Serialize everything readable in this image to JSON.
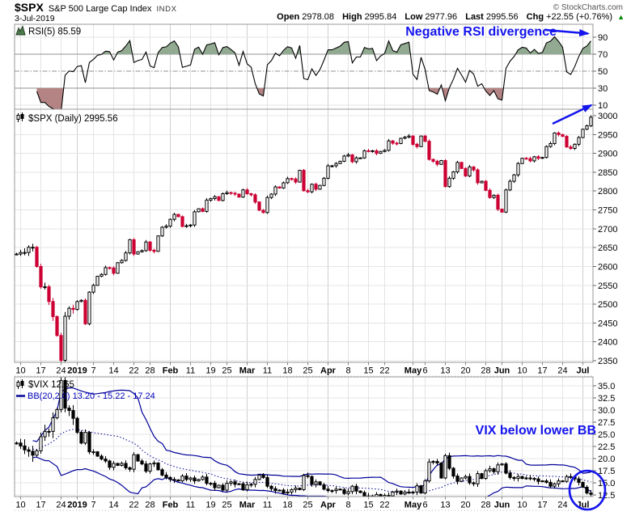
{
  "header": {
    "symbol": "$SPX",
    "name": "S&P 500 Large Cap Index",
    "exchange": "INDX",
    "date": "3-Jul-2019",
    "credit": "© StockCharts.com",
    "quote": {
      "open_label": "Open",
      "open": "2978.08",
      "high_label": "High",
      "high": "2995.84",
      "low_label": "Low",
      "low": "2977.96",
      "last_label": "Last",
      "last": "2995.56",
      "chg_label": "Chg",
      "chg": "+22.55 (+0.76%)",
      "arrow_up": "▲"
    }
  },
  "panels": {
    "rsi": {
      "label": "RSI(5) 85.59",
      "ticks": [
        90,
        70,
        50,
        30,
        10
      ],
      "overbought": 70,
      "midline": 50,
      "oversold": 30
    },
    "price": {
      "label": "$SPX (Daily) 2995.56",
      "ticks": [
        3000,
        2950,
        2900,
        2850,
        2800,
        2750,
        2700,
        2650,
        2600,
        2550,
        2500,
        2450,
        2400,
        2350
      ]
    },
    "vix": {
      "label": "$VIX 12.65",
      "bb_label": "BB(20,2.0) 13.20 - 15.22 - 17.24",
      "ticks": [
        "35.0",
        "32.5",
        "30.0",
        "27.5",
        "25.0",
        "22.5",
        "20.0",
        "17.5",
        "15.0",
        "12.5"
      ]
    }
  },
  "annotations": {
    "rsi_note": "Negative RSI divergence",
    "vix_note": "VIX below lower BB"
  },
  "x_labels": [
    {
      "t": "10",
      "i": 1
    },
    {
      "t": "17",
      "i": 6
    },
    {
      "t": "24",
      "i": 11
    },
    {
      "t": "2019",
      "i": 15,
      "b": 1
    },
    {
      "t": "7",
      "i": 19
    },
    {
      "t": "14",
      "i": 24
    },
    {
      "t": "22",
      "i": 29
    },
    {
      "t": "28",
      "i": 33
    },
    {
      "t": "Feb",
      "i": 38,
      "b": 1
    },
    {
      "t": "11",
      "i": 43
    },
    {
      "t": "19",
      "i": 48
    },
    {
      "t": "25",
      "i": 52
    },
    {
      "t": "Mar",
      "i": 57,
      "b": 1
    },
    {
      "t": "11",
      "i": 62
    },
    {
      "t": "18",
      "i": 67
    },
    {
      "t": "25",
      "i": 72
    },
    {
      "t": "Apr",
      "i": 77,
      "b": 1
    },
    {
      "t": "8",
      "i": 82
    },
    {
      "t": "15",
      "i": 87
    },
    {
      "t": "22",
      "i": 91
    },
    {
      "t": "May",
      "i": 98,
      "b": 1
    },
    {
      "t": "6",
      "i": 101
    },
    {
      "t": "13",
      "i": 106
    },
    {
      "t": "20",
      "i": 111
    },
    {
      "t": "28",
      "i": 116
    },
    {
      "t": "Jun",
      "i": 120,
      "b": 1
    },
    {
      "t": "10",
      "i": 125
    },
    {
      "t": "17",
      "i": 130
    },
    {
      "t": "24",
      "i": 135
    },
    {
      "t": "Jul",
      "i": 140,
      "b": 1
    }
  ],
  "colors": {
    "candle_down_red": "#cc0033",
    "candle_up_outline": "#000000",
    "vix_candle_down": "#000000",
    "rsi_fill_green": "#92aa92",
    "rsi_fill_red": "#b48484",
    "rsi_level_gray": "#909090",
    "grid_gray": "#e4e4e4",
    "bollinger_navy": "#000099",
    "annotation_blue": "#1414ee",
    "up_triangle_green": "#008800",
    "panel_border": "#999999"
  },
  "chart_data": [
    {
      "type": "line",
      "name": "RSI(5)",
      "panel": "top",
      "last_value": 85.59,
      "ylim": [
        0,
        100
      ],
      "levels": [
        90,
        70,
        50,
        30,
        10
      ],
      "fill_above": 70,
      "fill_below": 30,
      "derived_from": "SPX closes, Wilder RSI period 5"
    },
    {
      "type": "candlestick",
      "name": "$SPX Daily",
      "panel": "middle",
      "ylim": [
        2350,
        3017
      ],
      "last": 2995.56,
      "trading_days": {
        "2018-12": [
          7,
          10,
          11,
          12,
          13,
          14,
          17,
          18,
          19,
          20,
          21,
          24,
          26,
          27,
          28,
          31
        ],
        "2019-01": [
          2,
          3,
          4,
          7,
          8,
          9,
          10,
          11,
          14,
          15,
          16,
          17,
          18,
          22,
          23,
          24,
          25,
          28,
          29,
          30,
          31
        ],
        "2019-02": [
          1,
          4,
          5,
          6,
          7,
          8,
          11,
          12,
          13,
          14,
          15,
          19,
          20,
          21,
          22,
          25,
          26,
          27,
          28
        ],
        "2019-03": [
          1,
          4,
          5,
          6,
          7,
          8,
          11,
          12,
          13,
          14,
          15,
          18,
          19,
          20,
          21,
          22,
          25,
          26,
          27,
          28,
          29
        ],
        "2019-04": [
          1,
          2,
          3,
          4,
          5,
          8,
          9,
          10,
          11,
          12,
          15,
          16,
          17,
          18,
          22,
          23,
          24,
          25,
          26,
          29,
          30
        ],
        "2019-05": [
          1,
          2,
          3,
          6,
          7,
          8,
          9,
          10,
          13,
          14,
          15,
          16,
          17,
          20,
          21,
          22,
          23,
          24,
          28,
          29,
          30,
          31
        ],
        "2019-06": [
          3,
          4,
          5,
          6,
          7,
          10,
          11,
          12,
          13,
          14,
          17,
          18,
          19,
          20,
          21,
          24,
          25,
          26,
          27,
          28
        ],
        "2019-07": [
          1,
          2,
          3
        ]
      },
      "closes": [
        2633,
        2637,
        2637,
        2651,
        2651,
        2600,
        2546,
        2546,
        2507,
        2467,
        2417,
        2351,
        2468,
        2489,
        2486,
        2507,
        2510,
        2448,
        2532,
        2550,
        2574,
        2579,
        2597,
        2596,
        2582,
        2610,
        2616,
        2636,
        2671,
        2633,
        2639,
        2642,
        2665,
        2643,
        2640,
        2681,
        2704,
        2707,
        2725,
        2738,
        2732,
        2706,
        2708,
        2710,
        2745,
        2753,
        2746,
        2776,
        2780,
        2785,
        2775,
        2793,
        2796,
        2794,
        2792,
        2784,
        2803,
        2793,
        2790,
        2771,
        2749,
        2743,
        2783,
        2792,
        2811,
        2808,
        2822,
        2833,
        2832,
        2824,
        2855,
        2801,
        2798,
        2818,
        2805,
        2815,
        2834,
        2867,
        2867,
        2873,
        2879,
        2893,
        2896,
        2878,
        2888,
        2888,
        2907,
        2906,
        2907,
        2900,
        2905,
        2908,
        2933,
        2927,
        2926,
        2940,
        2943,
        2946,
        2924,
        2918,
        2946,
        2932,
        2884,
        2879,
        2871,
        2881,
        2812,
        2834,
        2851,
        2876,
        2860,
        2840,
        2864,
        2856,
        2822,
        2826,
        2802,
        2783,
        2789,
        2752,
        2744,
        2803,
        2826,
        2843,
        2873,
        2887,
        2886,
        2880,
        2891,
        2887,
        2889,
        2918,
        2926,
        2954,
        2950,
        2945,
        2917,
        2913,
        2924,
        2942,
        2964,
        2973,
        2996
      ]
    },
    {
      "type": "candlestick",
      "name": "$VIX",
      "panel": "bottom",
      "ylim": [
        12.2,
        37
      ],
      "last": 12.65,
      "closes": [
        23.2,
        22.6,
        21.8,
        21.5,
        20.7,
        21.6,
        24.5,
        25.6,
        25.6,
        28.4,
        30.1,
        36.1,
        30.4,
        29.9,
        28.3,
        25.4,
        23.2,
        25.4,
        21.4,
        21.4,
        20.5,
        19.9,
        19.5,
        18.2,
        19.0,
        18.6,
        19.0,
        18.1,
        17.8,
        20.8,
        19.5,
        18.9,
        17.4,
        18.9,
        19.1,
        17.7,
        16.6,
        16.1,
        15.7,
        15.6,
        15.4,
        16.4,
        15.7,
        16.0,
        15.4,
        15.7,
        16.2,
        14.9,
        14.9,
        14.0,
        14.5,
        13.5,
        14.9,
        15.2,
        14.7,
        14.8,
        13.6,
        14.6,
        14.7,
        15.7,
        16.6,
        16.1,
        14.3,
        13.8,
        13.4,
        13.5,
        12.9,
        13.1,
        13.6,
        13.9,
        13.6,
        16.5,
        16.3,
        14.7,
        15.2,
        14.6,
        13.7,
        13.4,
        13.4,
        13.7,
        13.6,
        12.8,
        13.2,
        14.3,
        13.3,
        13.0,
        12.0,
        12.3,
        12.2,
        12.6,
        12.1,
        12.4,
        12.3,
        13.1,
        13.3,
        12.7,
        13.1,
        13.1,
        13.1,
        14.4,
        12.9,
        15.4,
        19.3,
        19.4,
        19.1,
        16.0,
        20.6,
        18.0,
        16.4,
        15.3,
        16.0,
        16.3,
        15.0,
        14.8,
        16.9,
        15.9,
        17.5,
        17.9,
        17.3,
        18.7,
        18.9,
        17.0,
        16.1,
        15.9,
        16.3,
        15.9,
        16.0,
        15.9,
        15.8,
        15.3,
        15.4,
        15.1,
        14.3,
        14.8,
        15.4,
        15.3,
        16.3,
        16.2,
        15.8,
        15.1,
        14.1,
        12.9,
        12.65
      ],
      "bollinger": {
        "period": 20,
        "stdev": 2.0,
        "last_lower": 13.2,
        "last_middle": 15.22,
        "last_upper": 17.24
      }
    }
  ]
}
